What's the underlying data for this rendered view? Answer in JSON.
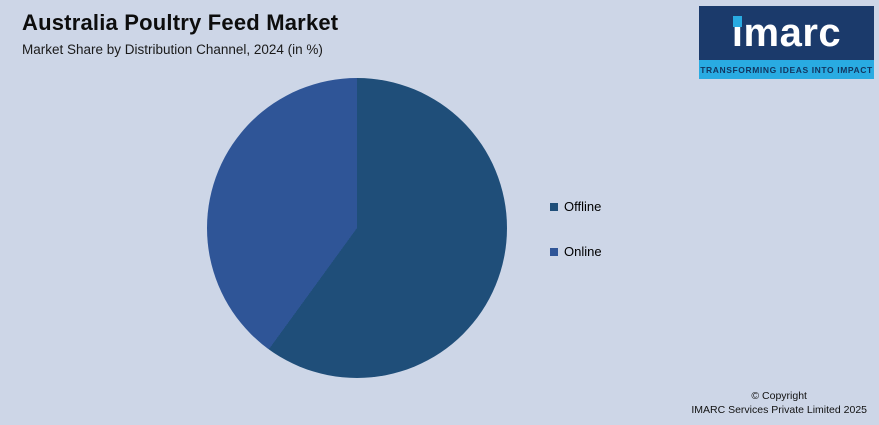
{
  "header": {
    "title": "Australia Poultry Feed Market",
    "subtitle": "Market Share by Distribution Channel, 2024 (in %)"
  },
  "logo": {
    "brand_i": "i",
    "brand_rest": "marc",
    "tagline": "TRANSFORMING IDEAS INTO IMPACT",
    "navy": "#1B3A6B",
    "cyan": "#29ABE2"
  },
  "footer": {
    "line1": "© Copyright",
    "line2": "IMARC Services Private Limited 2025"
  },
  "chart_data": {
    "type": "pie",
    "title": "Australia Poultry Feed Market",
    "subtitle": "Market Share by Distribution Channel, 2024 (in %)",
    "categories": [
      "Offline",
      "Online"
    ],
    "values": [
      60,
      40
    ],
    "unit": "%",
    "colors": [
      "#1F4E79",
      "#2F5597"
    ],
    "start_angle_deg": 0,
    "direction": "clockwise",
    "legend_position": "right",
    "data_labels": false
  }
}
